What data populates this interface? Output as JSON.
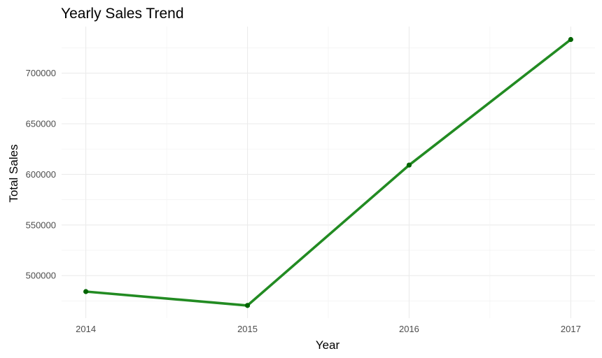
{
  "chart_data": {
    "type": "line",
    "title": "Yearly Sales Trend",
    "xlabel": "Year",
    "ylabel": "Total Sales",
    "x": [
      2014,
      2015,
      2016,
      2017
    ],
    "y": [
      484247,
      470533,
      609206,
      733215
    ],
    "xlim": [
      2013.85,
      2017.15
    ],
    "ylim": [
      458000,
      746000
    ],
    "y_ticks": [
      500000,
      550000,
      600000,
      650000,
      700000
    ],
    "x_ticks": [
      2014,
      2015,
      2016,
      2017
    ],
    "line_color": "#228b22",
    "point_color": "#006400",
    "grid": true,
    "legend": "none"
  }
}
